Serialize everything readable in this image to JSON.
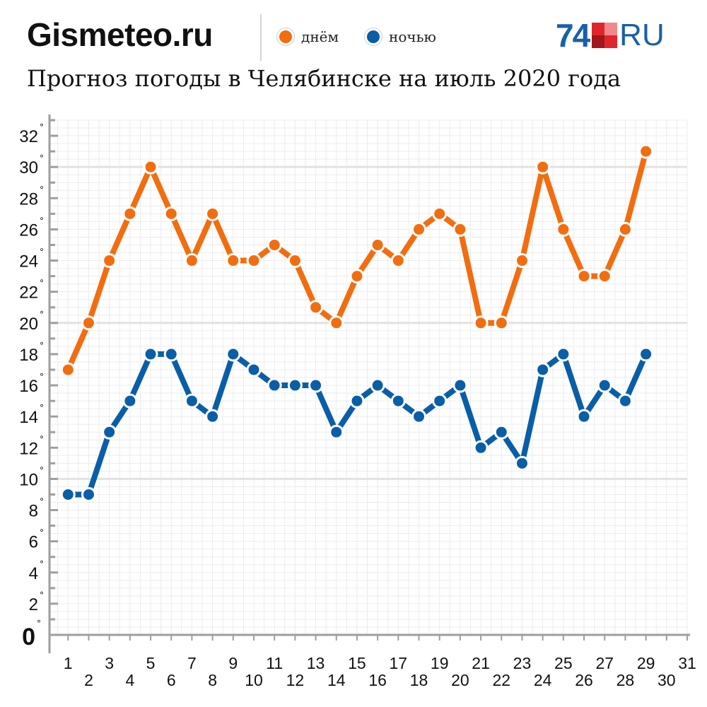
{
  "header": {
    "source": "Gismeteo.ru",
    "logo_number": "74",
    "logo_suffix": "RU",
    "title": "Прогноз погоды в Челябинске на июль 2020 года"
  },
  "colors": {
    "day": "#f26d0f",
    "night": "#0a5ea8",
    "grid": "#ececec",
    "grid_major": "#e2e2e2",
    "axis": "#9e9e9e",
    "logo_blue": "#1a5fa8",
    "logo_red": "#e0262b",
    "logo_pink": "#f08a8a",
    "logo_dark_red": "#a3161b"
  },
  "chart_data": {
    "type": "line",
    "title": "Прогноз погоды в Челябинске на июль 2020 года",
    "xlabel": "",
    "ylabel": "",
    "x": [
      1,
      2,
      3,
      4,
      5,
      6,
      7,
      8,
      9,
      10,
      11,
      12,
      13,
      14,
      15,
      16,
      17,
      18,
      19,
      20,
      21,
      22,
      23,
      24,
      25,
      26,
      27,
      28,
      29
    ],
    "x_ticks": [
      1,
      2,
      3,
      4,
      5,
      6,
      7,
      8,
      9,
      10,
      11,
      12,
      13,
      14,
      15,
      16,
      17,
      18,
      19,
      20,
      21,
      22,
      23,
      24,
      25,
      26,
      27,
      28,
      29,
      30,
      31
    ],
    "xlim": [
      0.1,
      31
    ],
    "ylim": [
      0,
      33
    ],
    "y_ticks": [
      0,
      2,
      4,
      6,
      8,
      10,
      12,
      14,
      16,
      18,
      20,
      22,
      24,
      26,
      28,
      30,
      32
    ],
    "y_tick_suffix": "°",
    "grid": true,
    "legend_position": "top",
    "series": [
      {
        "name": "днём",
        "color": "#f26d0f",
        "values": [
          17,
          20,
          24,
          27,
          30,
          27,
          24,
          27,
          24,
          24,
          25,
          24,
          21,
          20,
          23,
          25,
          24,
          26,
          27,
          26,
          20,
          20,
          24,
          30,
          26,
          23,
          23,
          26,
          31
        ]
      },
      {
        "name": "ночью",
        "color": "#0a5ea8",
        "values": [
          9,
          9,
          13,
          15,
          18,
          18,
          15,
          14,
          18,
          17,
          16,
          16,
          16,
          13,
          15,
          16,
          15,
          14,
          15,
          16,
          12,
          13,
          11,
          17,
          18,
          14,
          16,
          15,
          18
        ]
      }
    ]
  }
}
